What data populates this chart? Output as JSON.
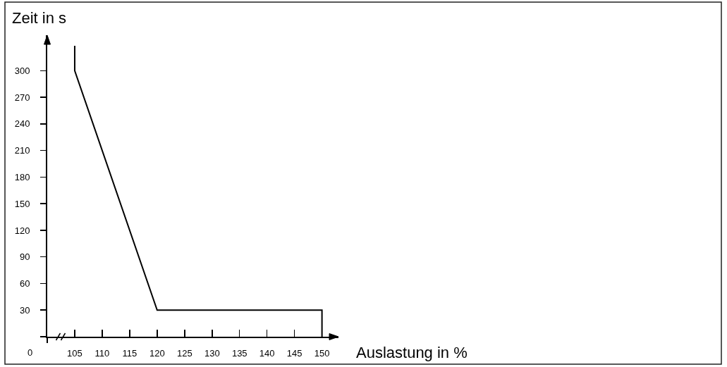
{
  "chart_data": {
    "type": "line",
    "xlabel": "Auslastung in %",
    "ylabel": "Zeit in s",
    "annotations": [
      "0"
    ],
    "x": [
      105,
      105,
      120,
      150,
      150
    ],
    "series": [
      {
        "color": "#000000",
        "values": [
          328,
          300,
          30,
          30,
          0
        ]
      }
    ],
    "xlim": [
      100,
      153
    ],
    "ylim": [
      0,
      340
    ],
    "xticks": [
      105,
      110,
      115,
      120,
      125,
      130,
      135,
      140,
      145,
      150
    ],
    "yticks": [
      30,
      60,
      90,
      120,
      150,
      180,
      210,
      240,
      270,
      300
    ],
    "grid": false,
    "marker": "none",
    "line_style": "solid"
  }
}
